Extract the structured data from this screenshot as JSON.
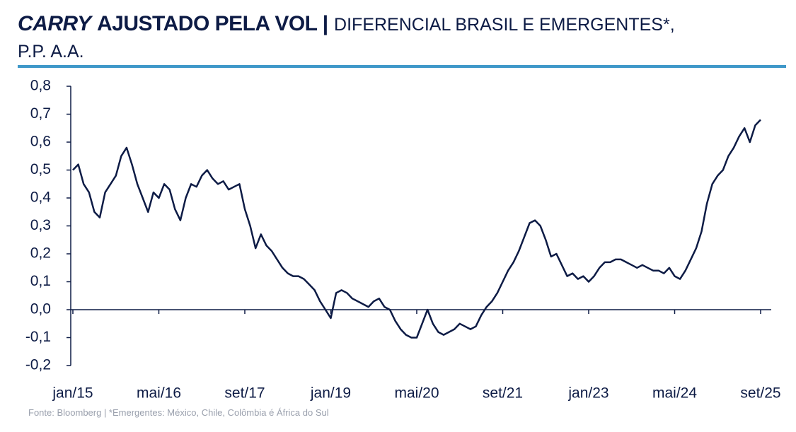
{
  "chart_data": {
    "type": "line",
    "title_italic": "CARRY",
    "title_bold": "AJUSTADO PELA VOL |",
    "title_rest": "DIFERENCIAL BRASIL E EMERGENTES*,",
    "title_line2": "P.P. A.A.",
    "source": "Fonte: Bloomberg | *Emergentes: México, Chile, Colômbia é África do Sul",
    "categories": [
      "jan/15",
      null,
      null,
      null,
      null,
      null,
      null,
      null,
      null,
      null,
      null,
      null,
      null,
      null,
      null,
      null,
      "mai/16",
      null,
      null,
      null,
      null,
      null,
      null,
      null,
      null,
      null,
      null,
      null,
      null,
      null,
      null,
      null,
      "set/17",
      null,
      null,
      null,
      null,
      null,
      null,
      null,
      null,
      null,
      null,
      null,
      null,
      null,
      null,
      null,
      "jan/19",
      null,
      null,
      null,
      null,
      null,
      null,
      null,
      null,
      null,
      null,
      null,
      null,
      null,
      null,
      null,
      "mai/20",
      null,
      null,
      null,
      null,
      null,
      null,
      null,
      null,
      null,
      null,
      null,
      null,
      null,
      null,
      null,
      "set/21",
      null,
      null,
      null,
      null,
      null,
      null,
      null,
      null,
      null,
      null,
      null,
      null,
      null,
      null,
      null,
      "jan/23",
      null,
      null,
      null,
      null,
      null,
      null,
      null,
      null,
      null,
      null,
      null,
      null,
      null,
      null,
      null,
      "mai/24",
      null,
      null,
      null,
      null,
      null,
      null,
      null,
      null,
      null,
      null,
      null,
      null,
      null,
      null,
      null,
      "set/25"
    ],
    "series": [
      {
        "color": "#0d1b45",
        "values": [
          0.5,
          0.52,
          0.45,
          0.42,
          0.35,
          0.33,
          0.42,
          0.45,
          0.48,
          0.55,
          0.58,
          0.52,
          0.45,
          0.4,
          0.35,
          0.42,
          0.4,
          0.45,
          0.43,
          0.36,
          0.32,
          0.4,
          0.45,
          0.44,
          0.48,
          0.5,
          0.47,
          0.45,
          0.46,
          0.43,
          0.44,
          0.45,
          0.36,
          0.3,
          0.22,
          0.27,
          0.23,
          0.21,
          0.18,
          0.15,
          0.13,
          0.12,
          0.12,
          0.11,
          0.09,
          0.07,
          0.03,
          0.0,
          -0.03,
          0.06,
          0.07,
          0.06,
          0.04,
          0.03,
          0.02,
          0.01,
          0.03,
          0.04,
          0.01,
          0.0,
          -0.04,
          -0.07,
          -0.09,
          -0.1,
          -0.1,
          -0.05,
          0.0,
          -0.05,
          -0.08,
          -0.09,
          -0.08,
          -0.07,
          -0.05,
          -0.06,
          -0.07,
          -0.06,
          -0.02,
          0.01,
          0.03,
          0.06,
          0.1,
          0.14,
          0.17,
          0.21,
          0.26,
          0.31,
          0.32,
          0.3,
          0.25,
          0.19,
          0.2,
          0.16,
          0.12,
          0.13,
          0.11,
          0.12,
          0.1,
          0.12,
          0.15,
          0.17,
          0.17,
          0.18,
          0.18,
          0.17,
          0.16,
          0.15,
          0.16,
          0.15,
          0.14,
          0.14,
          0.13,
          0.15,
          0.12,
          0.11,
          0.14,
          0.18,
          0.22,
          0.28,
          0.38,
          0.45,
          0.48,
          0.5,
          0.55,
          0.58,
          0.62,
          0.65,
          0.6,
          0.66,
          0.68
        ]
      }
    ],
    "ylim": [
      -0.2,
      0.8
    ],
    "yticks": [
      {
        "value": -0.2,
        "label": "-0,2"
      },
      {
        "value": -0.1,
        "label": "-0,1"
      },
      {
        "value": 0,
        "label": "0,0"
      },
      {
        "value": 0.1,
        "label": "0,1"
      },
      {
        "value": 0.2,
        "label": "0,2"
      },
      {
        "value": 0.3,
        "label": "0,3"
      },
      {
        "value": 0.4,
        "label": "0,4"
      },
      {
        "value": 0.5,
        "label": "0,5"
      },
      {
        "value": 0.6,
        "label": "0,6"
      },
      {
        "value": 0.7,
        "label": "0,7"
      },
      {
        "value": 0.8,
        "label": "0,8"
      }
    ],
    "grid": false
  }
}
